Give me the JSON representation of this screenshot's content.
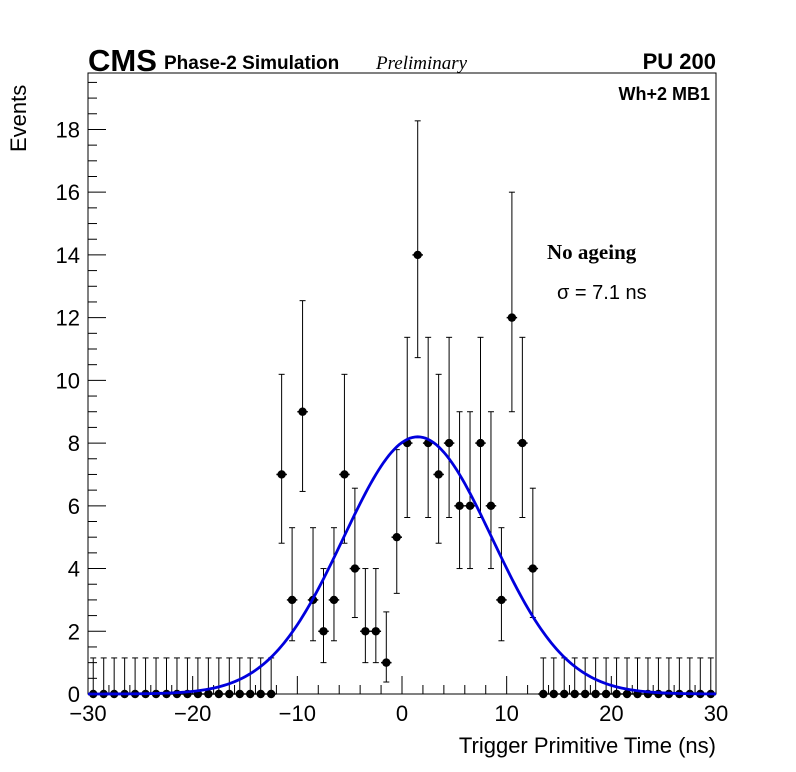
{
  "chart_data": {
    "type": "scatter",
    "title_parts": {
      "experiment": "CMS",
      "subtitle": "Phase-2 Simulation",
      "status": "Preliminary",
      "pileup": "PU 200"
    },
    "region_label": "Wh+2 MB1",
    "condition_label": "No ageing",
    "sigma_label": "σ = 7.1 ns",
    "xlabel": "Trigger Primitive Time (ns)",
    "ylabel": "Events",
    "xlim": [
      -30,
      30
    ],
    "ylim": [
      0,
      19.8
    ],
    "x_ticks": [
      -30,
      -20,
      -10,
      0,
      10,
      20,
      30
    ],
    "x_tick_labels": [
      "−30",
      "−20",
      "−10",
      "0",
      "10",
      "20",
      "30"
    ],
    "y_ticks": [
      0,
      2,
      4,
      6,
      8,
      10,
      12,
      14,
      16,
      18
    ],
    "y_tick_labels": [
      "0",
      "2",
      "4",
      "6",
      "8",
      "10",
      "12",
      "14",
      "16",
      "18"
    ],
    "bin_width": 1,
    "x": [
      -29.5,
      -28.5,
      -27.5,
      -26.5,
      -25.5,
      -24.5,
      -23.5,
      -22.5,
      -21.5,
      -20.5,
      -19.5,
      -18.5,
      -17.5,
      -16.5,
      -15.5,
      -14.5,
      -13.5,
      -12.5,
      -11.5,
      -10.5,
      -9.5,
      -8.5,
      -7.5,
      -6.5,
      -5.5,
      -4.5,
      -3.5,
      -2.5,
      -1.5,
      -0.5,
      0.5,
      1.5,
      2.5,
      3.5,
      4.5,
      5.5,
      6.5,
      7.5,
      8.5,
      9.5,
      10.5,
      11.5,
      12.5,
      13.5,
      14.5,
      15.5,
      16.5,
      17.5,
      18.5,
      19.5,
      20.5,
      21.5,
      22.5,
      23.5,
      24.5,
      25.5,
      26.5,
      27.5,
      28.5,
      29.5
    ],
    "values": [
      0,
      0,
      0,
      0,
      0,
      0,
      0,
      0,
      0,
      0,
      0,
      0,
      0,
      0,
      0,
      0,
      0,
      0,
      7,
      3,
      9,
      3,
      2,
      3,
      7,
      4,
      2,
      2,
      1,
      5,
      8,
      14,
      8,
      7,
      8,
      6,
      6,
      8,
      6,
      3,
      12,
      8,
      4,
      0,
      0,
      0,
      0,
      0,
      0,
      0,
      0,
      0,
      0,
      0,
      0,
      0,
      0,
      0,
      0,
      0
    ],
    "fit": {
      "name": "Gaussian fit",
      "amplitude": 8.2,
      "mean": 1.5,
      "sigma": 7.1,
      "color": "#0000dd"
    },
    "marker_color": "#000000"
  }
}
